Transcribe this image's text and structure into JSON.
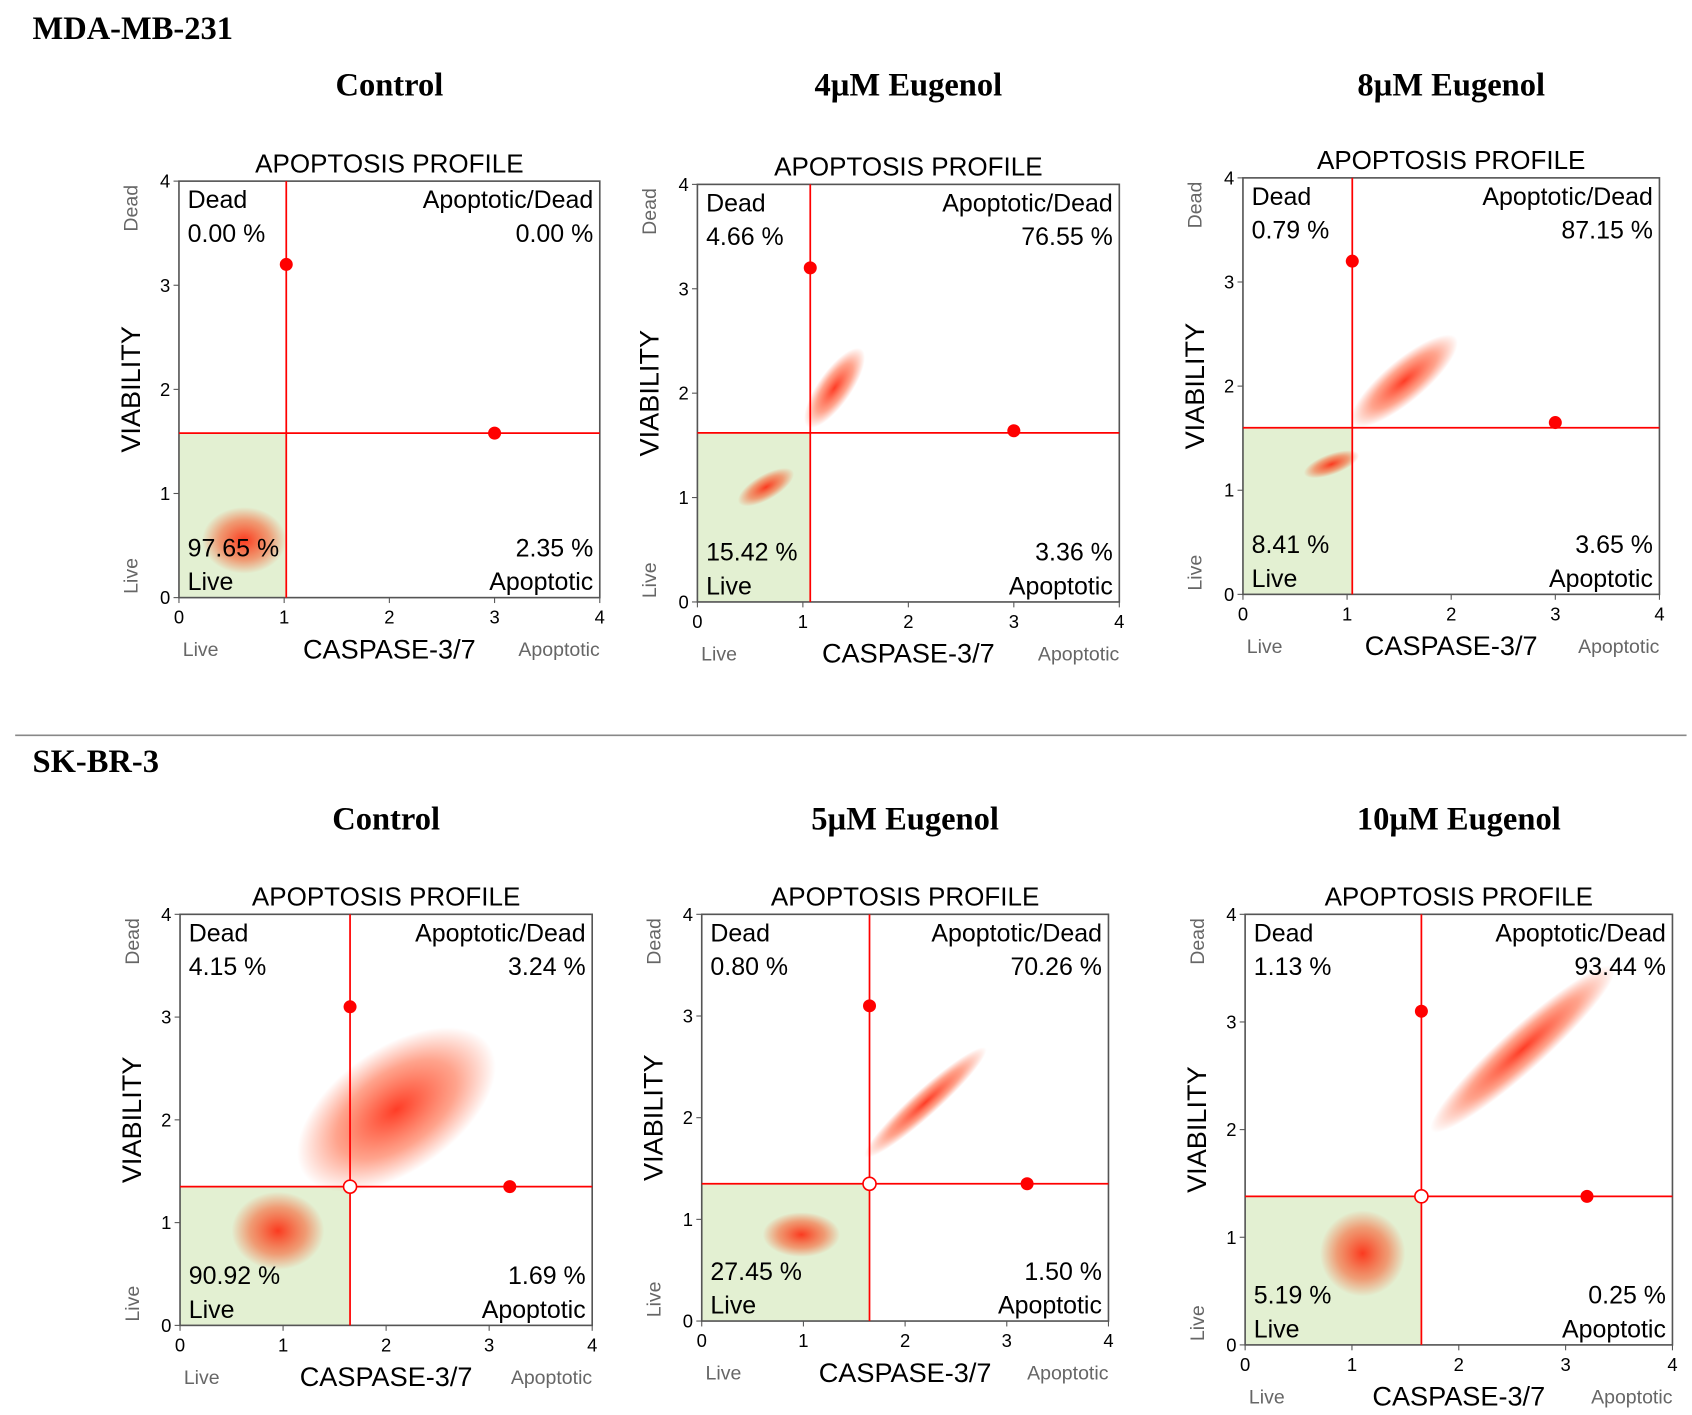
{
  "sections": [
    {
      "title": "MDA-MB-231"
    },
    {
      "title": "SK-BR-3"
    }
  ],
  "chart_data": [
    {
      "type": "scatter",
      "condition": "Control",
      "title": "APOPTOSIS PROFILE",
      "xlabel": "CASPASE-3/7",
      "ylabel": "VIABILITY",
      "corner_labels": {
        "y_top": "Dead",
        "y_bottom": "Live",
        "x_left": "Live",
        "x_right": "Apoptotic"
      },
      "xlim": [
        0,
        4
      ],
      "ylim": [
        0,
        4
      ],
      "xticks": [
        0,
        1,
        2,
        3,
        4
      ],
      "yticks": [
        0,
        1,
        2,
        3,
        4
      ],
      "color": "#ff0000",
      "gate": {
        "x": 1.02,
        "y": 1.58
      },
      "center_handle": false,
      "handles": {
        "x": [
          1.02,
          3.0
        ],
        "y": [
          3.2,
          1.58
        ]
      },
      "quadrants": [
        {
          "name": "Dead",
          "value": 0,
          "value_label": "0.00 %"
        },
        {
          "name": "Apoptotic/Dead",
          "value": 0,
          "value_label": "0.00 %"
        },
        {
          "name": "Live",
          "value": 97.65,
          "value_label": "97.65 %"
        },
        {
          "name": "Apoptotic",
          "value": 2.35,
          "value_label": "2.35 %"
        }
      ],
      "clusters": [
        {
          "x": 0.62,
          "y": 0.55,
          "rx": 0.4,
          "ry": 0.32,
          "angle": 0
        }
      ]
    },
    {
      "type": "scatter",
      "condition": "4µM Eugenol",
      "title": "APOPTOSIS PROFILE",
      "xlabel": "CASPASE-3/7",
      "ylabel": "VIABILITY",
      "corner_labels": {
        "y_top": "Dead",
        "y_bottom": "Live",
        "x_left": "Live",
        "x_right": "Apoptotic"
      },
      "xlim": [
        0,
        4
      ],
      "ylim": [
        0,
        4
      ],
      "xticks": [
        0,
        1,
        2,
        3,
        4
      ],
      "yticks": [
        0,
        1,
        2,
        3,
        4
      ],
      "color": "#ff0000",
      "gate": {
        "x": 1.07,
        "y": 1.62
      },
      "center_handle": false,
      "handles": {
        "x": [
          1.07,
          3.0
        ],
        "y": [
          3.2,
          1.64
        ]
      },
      "quadrants": [
        {
          "name": "Dead",
          "value": 4.66,
          "value_label": "4.66 %"
        },
        {
          "name": "Apoptotic/Dead",
          "value": 76.55,
          "value_label": "76.55 %"
        },
        {
          "name": "Live",
          "value": 15.42,
          "value_label": "15.42 %"
        },
        {
          "name": "Apoptotic",
          "value": 3.36,
          "value_label": "3.36 %"
        }
      ],
      "clusters": [
        {
          "x": 1.3,
          "y": 2.05,
          "rx": 0.45,
          "ry": 0.16,
          "angle": 55
        },
        {
          "x": 0.65,
          "y": 1.1,
          "rx": 0.3,
          "ry": 0.12,
          "angle": 30
        }
      ]
    },
    {
      "type": "scatter",
      "condition": "8µM Eugenol",
      "title": "APOPTOSIS PROFILE",
      "xlabel": "CASPASE-3/7",
      "ylabel": "VIABILITY",
      "corner_labels": {
        "y_top": "Dead",
        "y_bottom": "Live",
        "x_left": "Live",
        "x_right": "Apoptotic"
      },
      "xlim": [
        0,
        4
      ],
      "ylim": [
        0,
        4
      ],
      "xticks": [
        0,
        1,
        2,
        3,
        4
      ],
      "yticks": [
        0,
        1,
        2,
        3,
        4
      ],
      "color": "#ff0000",
      "gate": {
        "x": 1.05,
        "y": 1.6
      },
      "center_handle": false,
      "handles": {
        "x": [
          1.05,
          3.0
        ],
        "y": [
          3.2,
          1.65
        ]
      },
      "quadrants": [
        {
          "name": "Dead",
          "value": 0.79,
          "value_label": "0.79 %"
        },
        {
          "name": "Apoptotic/Dead",
          "value": 87.15,
          "value_label": "87.15 %"
        },
        {
          "name": "Live",
          "value": 8.41,
          "value_label": "8.41 %"
        },
        {
          "name": "Apoptotic",
          "value": 3.65,
          "value_label": "3.65 %"
        }
      ],
      "clusters": [
        {
          "x": 1.55,
          "y": 2.05,
          "rx": 0.65,
          "ry": 0.2,
          "angle": 40
        },
        {
          "x": 0.85,
          "y": 1.25,
          "rx": 0.28,
          "ry": 0.1,
          "angle": 20
        }
      ]
    },
    {
      "type": "scatter",
      "condition": "Control",
      "title": "APOPTOSIS PROFILE",
      "xlabel": "CASPASE-3/7",
      "ylabel": "VIABILITY",
      "corner_labels": {
        "y_top": "Dead",
        "y_bottom": "Live",
        "x_left": "Live",
        "x_right": "Apoptotic"
      },
      "xlim": [
        0,
        4
      ],
      "ylim": [
        0,
        4
      ],
      "xticks": [
        0,
        1,
        2,
        3,
        4
      ],
      "yticks": [
        0,
        1,
        2,
        3,
        4
      ],
      "color": "#ff0000",
      "gate": {
        "x": 1.65,
        "y": 1.35
      },
      "center_handle": true,
      "handles": {
        "x": [
          1.65,
          3.2
        ],
        "y": [
          3.1,
          1.35
        ]
      },
      "quadrants": [
        {
          "name": "Dead",
          "value": 4.15,
          "value_label": "4.15 %"
        },
        {
          "name": "Apoptotic/Dead",
          "value": 3.24,
          "value_label": "3.24 %"
        },
        {
          "name": "Live",
          "value": 90.92,
          "value_label": "90.92 %"
        },
        {
          "name": "Apoptotic",
          "value": 1.69,
          "value_label": "1.69 %"
        }
      ],
      "clusters": [
        {
          "x": 0.95,
          "y": 0.92,
          "rx": 0.45,
          "ry": 0.38,
          "angle": 0
        },
        {
          "x": 2.1,
          "y": 2.1,
          "rx": 1.1,
          "ry": 0.6,
          "angle": 35
        }
      ]
    },
    {
      "type": "scatter",
      "condition": "5µM Eugenol",
      "title": "APOPTOSIS PROFILE",
      "xlabel": "CASPASE-3/7",
      "ylabel": "VIABILITY",
      "corner_labels": {
        "y_top": "Dead",
        "y_bottom": "Live",
        "x_left": "Live",
        "x_right": "Apoptotic"
      },
      "xlim": [
        0,
        4
      ],
      "ylim": [
        0,
        4
      ],
      "xticks": [
        0,
        1,
        2,
        3,
        4
      ],
      "yticks": [
        0,
        1,
        2,
        3,
        4
      ],
      "color": "#ff0000",
      "gate": {
        "x": 1.65,
        "y": 1.35
      },
      "center_handle": true,
      "handles": {
        "x": [
          1.65,
          3.2
        ],
        "y": [
          3.1,
          1.35
        ]
      },
      "quadrants": [
        {
          "name": "Dead",
          "value": 0.8,
          "value_label": "0.80 %"
        },
        {
          "name": "Apoptotic/Dead",
          "value": 70.26,
          "value_label": "70.26 %"
        },
        {
          "name": "Live",
          "value": 27.45,
          "value_label": "27.45 %"
        },
        {
          "name": "Apoptotic",
          "value": 1.5,
          "value_label": "1.50 %"
        }
      ],
      "clusters": [
        {
          "x": 0.98,
          "y": 0.85,
          "rx": 0.38,
          "ry": 0.22,
          "angle": 0
        },
        {
          "x": 2.2,
          "y": 2.15,
          "rx": 0.8,
          "ry": 0.13,
          "angle": 42
        }
      ]
    },
    {
      "type": "scatter",
      "condition": "10µM Eugenol",
      "title": "APOPTOSIS PROFILE",
      "xlabel": "CASPASE-3/7",
      "ylabel": "VIABILITY",
      "corner_labels": {
        "y_top": "Dead",
        "y_bottom": "Live",
        "x_left": "Live",
        "x_right": "Apoptotic"
      },
      "xlim": [
        0,
        4
      ],
      "ylim": [
        0,
        4
      ],
      "xticks": [
        0,
        1,
        2,
        3,
        4
      ],
      "yticks": [
        0,
        1,
        2,
        3,
        4
      ],
      "color": "#ff0000",
      "gate": {
        "x": 1.65,
        "y": 1.38
      },
      "center_handle": true,
      "handles": {
        "x": [
          1.65,
          3.2
        ],
        "y": [
          3.1,
          1.38
        ]
      },
      "quadrants": [
        {
          "name": "Dead",
          "value": 1.13,
          "value_label": "1.13 %"
        },
        {
          "name": "Apoptotic/Dead",
          "value": 93.44,
          "value_label": "93.44 %"
        },
        {
          "name": "Live",
          "value": 5.19,
          "value_label": "5.19 %"
        },
        {
          "name": "Apoptotic",
          "value": 0.25,
          "value_label": "0.25 %"
        }
      ],
      "clusters": [
        {
          "x": 2.6,
          "y": 2.75,
          "rx": 1.15,
          "ry": 0.2,
          "angle": 42
        },
        {
          "x": 1.1,
          "y": 0.85,
          "rx": 0.4,
          "ry": 0.4,
          "angle": 0
        }
      ]
    }
  ]
}
